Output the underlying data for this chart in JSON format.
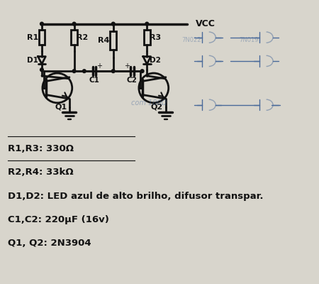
{
  "bg_color": "#d8d5cc",
  "ink_color": "#111111",
  "blue_ink": "#4a6a9a",
  "figsize": [
    4.5,
    4.0
  ],
  "dpi": 100,
  "bom": [
    "R1,R3: 330Ω",
    "R2,R4: 33kΩ",
    "D1,D2: LED azul de alto brilho, difusor transpar.",
    "C1,C2: 220μF (16v)",
    "Q1, Q2: 2N3904"
  ]
}
